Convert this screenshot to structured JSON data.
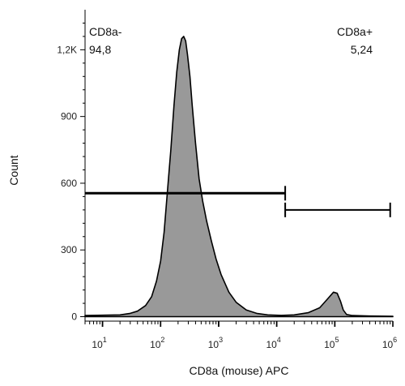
{
  "chart_data": {
    "type": "area",
    "xlabel": "CD8a (mouse) APC",
    "ylabel": "Count",
    "x_scale": "log",
    "xlim": [
      5,
      1000000
    ],
    "ylim": [
      -20,
      1380
    ],
    "x_ticks": [
      {
        "value": 10,
        "base": "10",
        "exp": "1"
      },
      {
        "value": 100,
        "base": "10",
        "exp": "2"
      },
      {
        "value": 1000,
        "base": "10",
        "exp": "3"
      },
      {
        "value": 10000,
        "base": "10",
        "exp": "4"
      },
      {
        "value": 100000,
        "base": "10",
        "exp": "5"
      },
      {
        "value": 1000000,
        "base": "10",
        "exp": "6"
      }
    ],
    "y_ticks": [
      {
        "value": 0,
        "label": "0"
      },
      {
        "value": 300,
        "label": "300"
      },
      {
        "value": 600,
        "label": "600"
      },
      {
        "value": 900,
        "label": "900"
      },
      {
        "value": 1200,
        "label": "1,2K"
      }
    ],
    "series": [
      {
        "fill": "#999999",
        "stroke": "#000000",
        "x": [
          5,
          20,
          30,
          40,
          55,
          70,
          85,
          100,
          115,
          130,
          150,
          170,
          190,
          210,
          230,
          250,
          270,
          290,
          320,
          350,
          400,
          460,
          530,
          620,
          750,
          900,
          1100,
          1500,
          2000,
          3000,
          4500,
          7000,
          12000,
          20000,
          35000,
          55000,
          75000,
          95000,
          110000,
          125000,
          140000,
          160000,
          200000,
          400000,
          1000000
        ],
        "y": [
          5,
          8,
          15,
          25,
          50,
          90,
          160,
          250,
          380,
          550,
          750,
          950,
          1100,
          1200,
          1250,
          1260,
          1240,
          1180,
          1080,
          950,
          780,
          620,
          520,
          430,
          340,
          260,
          190,
          110,
          65,
          30,
          15,
          8,
          6,
          8,
          18,
          40,
          80,
          110,
          105,
          70,
          30,
          10,
          5,
          3,
          2
        ]
      }
    ],
    "gates": [
      {
        "name": "CD8a-",
        "value": "94,8",
        "x_start": 5,
        "x_end": 14000,
        "y": 555
      },
      {
        "name": "CD8a+",
        "value": "5,24",
        "x_start": 14000,
        "x_end": 900000,
        "y": 480
      }
    ]
  }
}
